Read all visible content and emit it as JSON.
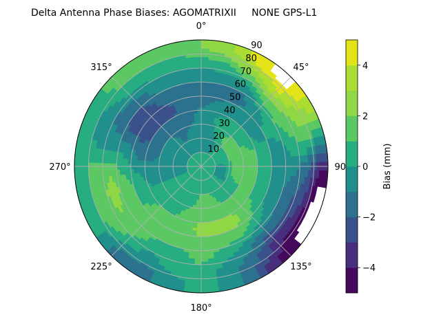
{
  "chart_data": {
    "type": "heatmap",
    "subtype": "polar-filled-contour",
    "title": "Delta Antenna Phase Biases: AGOMATRIXII     NONE GPS-L1",
    "theta_zero": "north",
    "theta_direction": "clockwise",
    "theta_ticks": [
      "0°",
      "45°",
      "90°",
      "135°",
      "180°",
      "225°",
      "270°",
      "315°"
    ],
    "theta_tick_values": [
      0,
      45,
      90,
      135,
      180,
      225,
      270,
      315
    ],
    "r_ticks": [
      "10",
      "20",
      "30",
      "40",
      "50",
      "60",
      "70",
      "80",
      "90"
    ],
    "r_tick_values": [
      10,
      20,
      30,
      40,
      50,
      60,
      70,
      80,
      90
    ],
    "rlim": [
      0,
      90
    ],
    "grid": true,
    "colorbar": {
      "label": "Bias (mm)",
      "levels": [
        -5,
        -4,
        -3,
        -2,
        -1,
        0,
        1,
        2,
        3,
        4,
        5
      ],
      "ticks": [
        "−4",
        "−2",
        "0",
        "2",
        "4"
      ],
      "tick_values": [
        -4,
        -2,
        0,
        2,
        4
      ],
      "colormap": "viridis",
      "colors": [
        "#46085c",
        "#472f7d",
        "#3b518b",
        "#2c718e",
        "#21908d",
        "#27ad81",
        "#5cc863",
        "#8fd744",
        "#aadc32",
        "#e3e418"
      ],
      "position": "right"
    },
    "grid_azimuth_deg": [
      0,
      15,
      30,
      45,
      60,
      75,
      90,
      105,
      120,
      135,
      150,
      165,
      180,
      195,
      210,
      225,
      240,
      255,
      270,
      285,
      300,
      315,
      330,
      345
    ],
    "grid_radius": [
      5,
      15,
      25,
      35,
      45,
      55,
      65,
      75,
      85
    ],
    "values": [
      [
        0.5,
        -0.5,
        -0.5,
        -0.5,
        -1.2,
        -1.5,
        -0.5,
        0.5,
        2.0
      ],
      [
        0.5,
        -0.5,
        -0.5,
        0.0,
        -0.8,
        -1.5,
        -0.5,
        1.0,
        3.0
      ],
      [
        0.5,
        -0.5,
        0.5,
        0.5,
        -0.5,
        -1.5,
        -0.5,
        2.5,
        4.6
      ],
      [
        0.5,
        0.5,
        1.5,
        0.5,
        -0.5,
        -0.5,
        1.5,
        3.8,
        5.6
      ],
      [
        0.5,
        0.5,
        1.5,
        0.5,
        -0.5,
        0.5,
        1.5,
        2.5,
        3.5
      ],
      [
        0.5,
        0.5,
        1.5,
        1.5,
        0.5,
        -0.5,
        0.5,
        1.5,
        0.5
      ],
      [
        0.5,
        -0.5,
        1.5,
        1.5,
        0.5,
        -0.5,
        -0.5,
        -1.5,
        -3.5
      ],
      [
        0.5,
        -0.5,
        1.5,
        1.5,
        0.5,
        -0.5,
        -1.5,
        -2.5,
        -5.6
      ],
      [
        0.5,
        -0.5,
        0.5,
        1.5,
        0.5,
        -0.5,
        -1.5,
        -3.5,
        -5.6
      ],
      [
        0.5,
        0.5,
        0.5,
        1.5,
        1.5,
        0.5,
        -1.5,
        -3.5,
        -4.6
      ],
      [
        0.5,
        0.5,
        0.5,
        1.5,
        2.5,
        1.5,
        -0.5,
        -1.5,
        -2.5
      ],
      [
        0.5,
        0.5,
        1.5,
        1.5,
        2.5,
        1.5,
        0.5,
        -0.5,
        -0.5
      ],
      [
        0.5,
        0.5,
        1.5,
        1.5,
        2.5,
        1.5,
        1.5,
        0.5,
        0.5
      ],
      [
        0.5,
        0.5,
        0.5,
        1.5,
        1.5,
        1.5,
        0.5,
        0.5,
        -0.5
      ],
      [
        0.5,
        0.5,
        0.5,
        0.5,
        1.5,
        1.5,
        0.5,
        -0.5,
        -1.5
      ],
      [
        0.5,
        0.5,
        0.5,
        0.5,
        1.5,
        1.5,
        1.5,
        0.5,
        -1.5
      ],
      [
        0.5,
        0.5,
        0.5,
        0.5,
        0.5,
        1.5,
        2.0,
        1.5,
        0.5
      ],
      [
        0.5,
        -0.5,
        -0.5,
        -0.5,
        0.5,
        1.5,
        2.5,
        1.5,
        0.5
      ],
      [
        0.5,
        -0.5,
        -0.5,
        -0.5,
        -0.5,
        0.5,
        1.5,
        1.5,
        0.5
      ],
      [
        0.5,
        -0.5,
        -0.5,
        -1.5,
        -1.5,
        -0.5,
        -0.5,
        -0.5,
        0.5
      ],
      [
        0.5,
        -0.5,
        -0.5,
        -1.5,
        -2.5,
        -2.5,
        -1.5,
        -0.5,
        0.5
      ],
      [
        0.5,
        -0.5,
        -0.5,
        -1.5,
        -2.5,
        -2.5,
        -1.5,
        0.5,
        1.5
      ],
      [
        0.5,
        -0.5,
        -1.5,
        -1.5,
        -2.5,
        -1.5,
        -0.5,
        0.5,
        1.5
      ],
      [
        0.5,
        -0.5,
        -0.5,
        -1.5,
        -1.5,
        -1.5,
        -0.5,
        0.5,
        1.5
      ]
    ]
  }
}
